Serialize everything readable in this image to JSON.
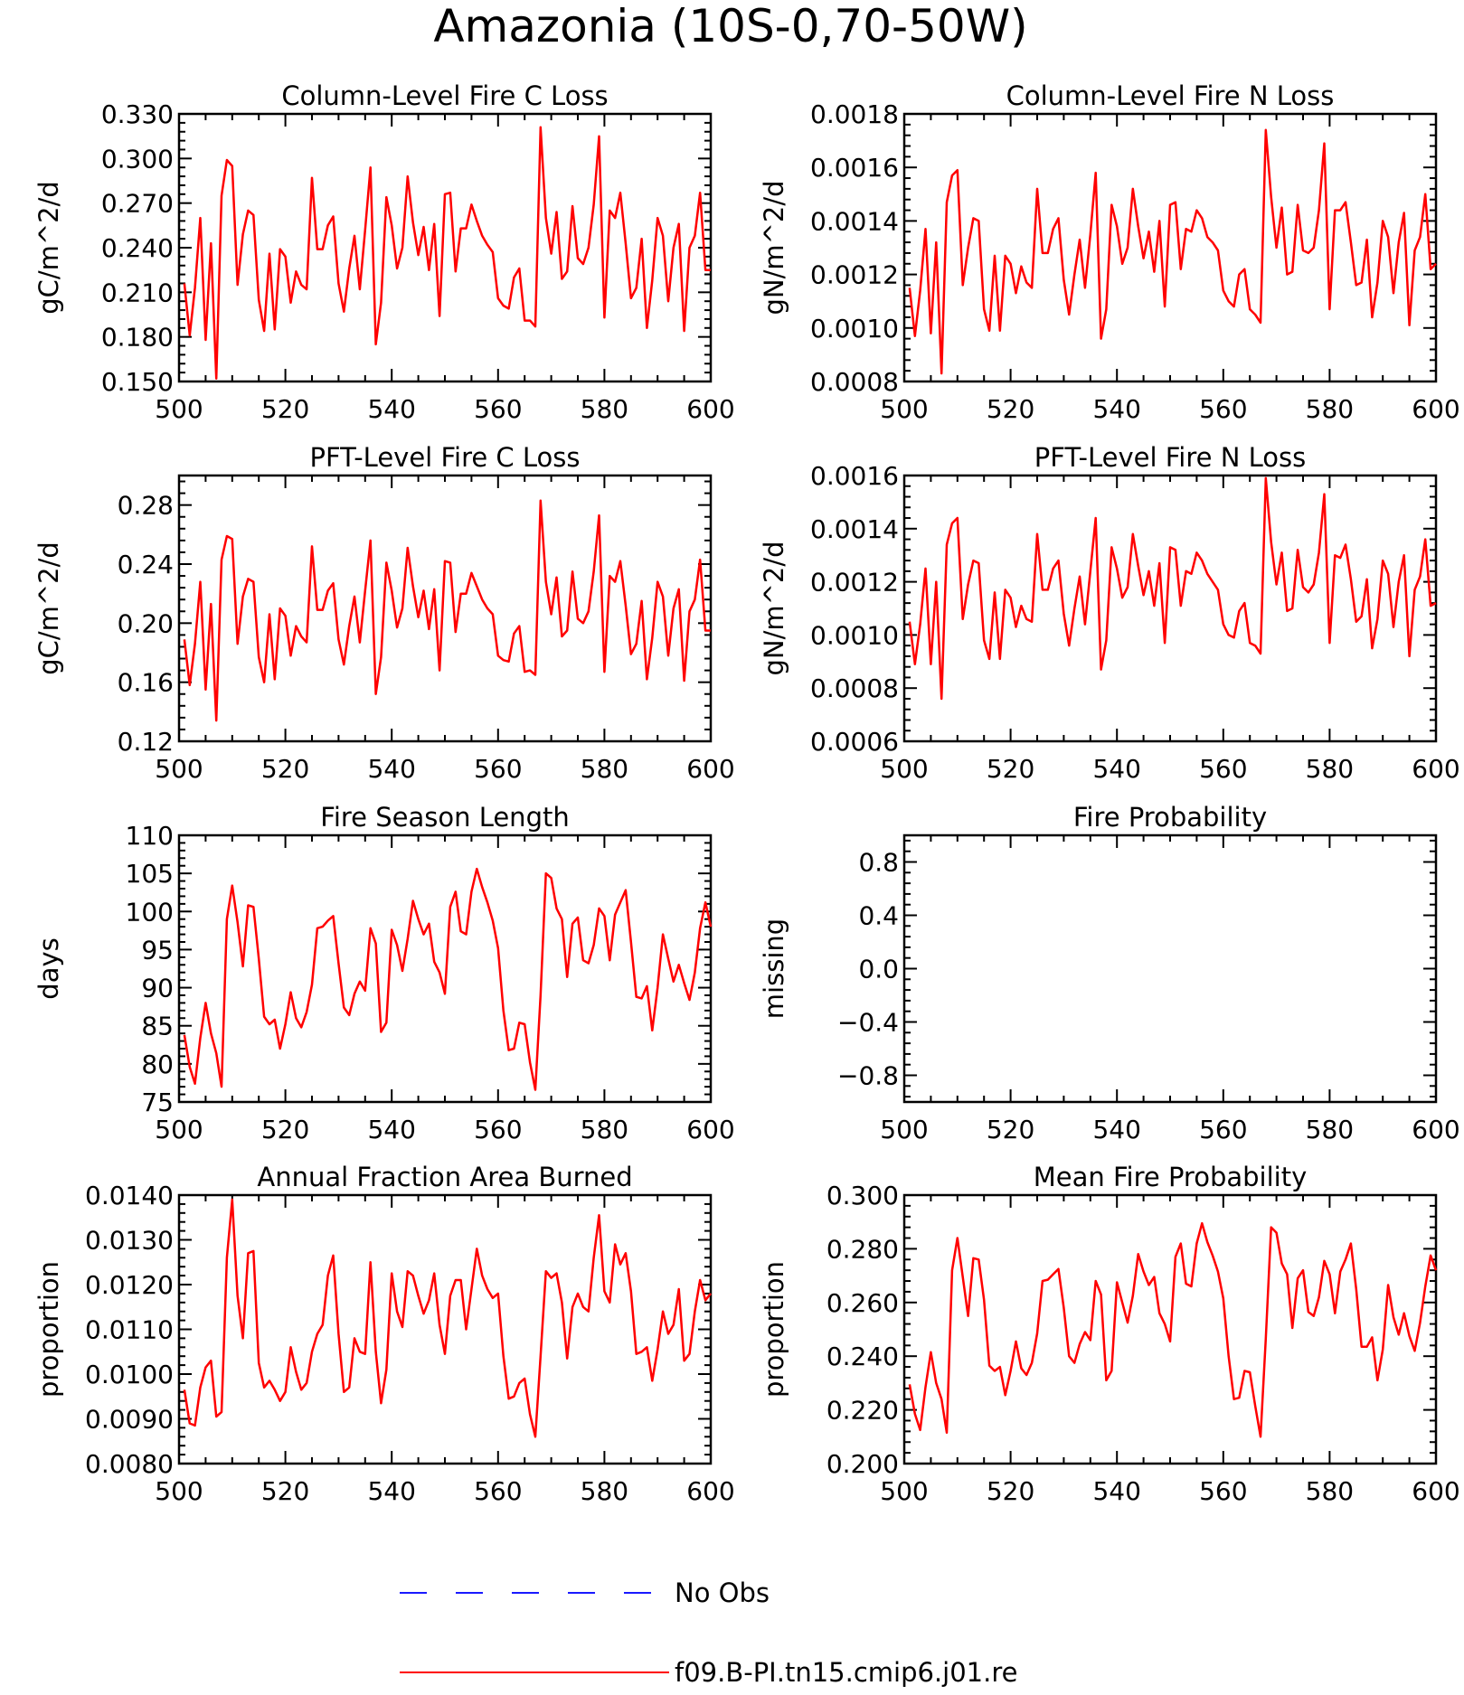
{
  "title": "Amazonia (10S-0,70-50W)",
  "legend": [
    {
      "label": "No Obs",
      "color": "#1a1aff",
      "style": "dashed"
    },
    {
      "label": "f09.B-PI.tn15.cmip6.j01.re",
      "color": "#ff0000",
      "style": "solid"
    }
  ],
  "chart_data": [
    {
      "type": "line",
      "title": "Column-Level Fire C Loss",
      "ylabel": "gC/m^2/d",
      "xlim": [
        500,
        600
      ],
      "xticks": [
        500,
        520,
        540,
        560,
        580,
        600
      ],
      "ylim": [
        0.15,
        0.33
      ],
      "yticks": [
        0.15,
        0.18,
        0.21,
        0.24,
        0.27,
        0.3,
        0.33
      ],
      "ytick_labels": [
        "0.150",
        "0.180",
        "0.210",
        "0.240",
        "0.270",
        "0.300",
        "0.330"
      ],
      "x_start": 501,
      "series": [
        {
          "color": "#ff0000",
          "values": [
            0.216,
            0.181,
            0.213,
            0.26,
            0.178,
            0.243,
            0.152,
            0.275,
            0.299,
            0.295,
            0.215,
            0.249,
            0.265,
            0.262,
            0.205,
            0.184,
            0.236,
            0.185,
            0.239,
            0.234,
            0.203,
            0.224,
            0.215,
            0.212,
            0.287,
            0.239,
            0.239,
            0.255,
            0.261,
            0.216,
            0.197,
            0.226,
            0.248,
            0.212,
            0.252,
            0.294,
            0.175,
            0.203,
            0.274,
            0.255,
            0.226,
            0.24,
            0.288,
            0.257,
            0.235,
            0.254,
            0.225,
            0.256,
            0.194,
            0.276,
            0.277,
            0.224,
            0.253,
            0.253,
            0.269,
            0.258,
            0.248,
            0.242,
            0.237,
            0.206,
            0.201,
            0.199,
            0.22,
            0.226,
            0.191,
            0.191,
            0.187,
            0.321,
            0.26,
            0.236,
            0.264,
            0.219,
            0.224,
            0.268,
            0.233,
            0.229,
            0.24,
            0.269,
            0.315,
            0.193,
            0.265,
            0.26,
            0.277,
            0.243,
            0.206,
            0.213,
            0.246,
            0.186,
            0.218,
            0.26,
            0.248,
            0.204,
            0.24,
            0.256,
            0.184,
            0.24,
            0.248,
            0.277,
            0.225,
            0.225
          ]
        }
      ]
    },
    {
      "type": "line",
      "title": "Column-Level Fire N Loss",
      "ylabel": "gN/m^2/d",
      "xlim": [
        500,
        600
      ],
      "xticks": [
        500,
        520,
        540,
        560,
        580,
        600
      ],
      "ylim": [
        0.0008,
        0.0018
      ],
      "yticks": [
        0.0008,
        0.001,
        0.0012,
        0.0014,
        0.0016,
        0.0018
      ],
      "ytick_labels": [
        "0.0008",
        "0.0010",
        "0.0012",
        "0.0014",
        "0.0016",
        "0.0018"
      ],
      "x_start": 501,
      "series": [
        {
          "color": "#ff0000",
          "values": [
            0.00115,
            0.00097,
            0.00114,
            0.00137,
            0.00098,
            0.00132,
            0.00083,
            0.00147,
            0.00157,
            0.00159,
            0.00116,
            0.0013,
            0.00141,
            0.0014,
            0.00107,
            0.00099,
            0.00127,
            0.00099,
            0.00127,
            0.00124,
            0.00113,
            0.00123,
            0.00117,
            0.00115,
            0.00152,
            0.00128,
            0.00128,
            0.00137,
            0.00141,
            0.00118,
            0.00105,
            0.0012,
            0.00133,
            0.00115,
            0.00135,
            0.00158,
            0.00096,
            0.00107,
            0.00146,
            0.00138,
            0.00124,
            0.0013,
            0.00152,
            0.00138,
            0.00126,
            0.00136,
            0.00121,
            0.0014,
            0.00108,
            0.00146,
            0.00147,
            0.00122,
            0.00137,
            0.00136,
            0.00144,
            0.00141,
            0.00134,
            0.00132,
            0.00129,
            0.00114,
            0.0011,
            0.00108,
            0.0012,
            0.00122,
            0.00107,
            0.00105,
            0.00102,
            0.00174,
            0.00149,
            0.0013,
            0.00145,
            0.0012,
            0.00121,
            0.00146,
            0.00129,
            0.00128,
            0.0013,
            0.00144,
            0.00169,
            0.00107,
            0.00144,
            0.00144,
            0.00147,
            0.00132,
            0.00116,
            0.00117,
            0.00133,
            0.00104,
            0.00117,
            0.0014,
            0.00134,
            0.00113,
            0.00132,
            0.00143,
            0.00101,
            0.00129,
            0.00134,
            0.0015,
            0.00122,
            0.00124
          ]
        }
      ]
    },
    {
      "type": "line",
      "title": "PFT-Level Fire C Loss",
      "ylabel": "gC/m^2/d",
      "xlim": [
        500,
        600
      ],
      "xticks": [
        500,
        520,
        540,
        560,
        580,
        600
      ],
      "ylim": [
        0.12,
        0.3
      ],
      "yticks": [
        0.12,
        0.16,
        0.2,
        0.24,
        0.28
      ],
      "ytick_labels": [
        "0.12",
        "0.16",
        "0.20",
        "0.24",
        "0.28"
      ],
      "x_start": 501,
      "series": [
        {
          "color": "#ff0000",
          "values": [
            0.189,
            0.158,
            0.186,
            0.228,
            0.155,
            0.213,
            0.134,
            0.243,
            0.259,
            0.257,
            0.186,
            0.218,
            0.23,
            0.228,
            0.177,
            0.16,
            0.206,
            0.162,
            0.21,
            0.205,
            0.178,
            0.198,
            0.191,
            0.187,
            0.252,
            0.209,
            0.209,
            0.222,
            0.227,
            0.189,
            0.172,
            0.198,
            0.218,
            0.187,
            0.222,
            0.256,
            0.152,
            0.177,
            0.241,
            0.222,
            0.197,
            0.21,
            0.251,
            0.225,
            0.204,
            0.222,
            0.196,
            0.223,
            0.168,
            0.242,
            0.241,
            0.194,
            0.22,
            0.22,
            0.234,
            0.225,
            0.216,
            0.21,
            0.206,
            0.178,
            0.175,
            0.174,
            0.193,
            0.198,
            0.167,
            0.168,
            0.165,
            0.283,
            0.228,
            0.206,
            0.231,
            0.191,
            0.195,
            0.235,
            0.203,
            0.2,
            0.208,
            0.235,
            0.273,
            0.167,
            0.232,
            0.228,
            0.242,
            0.212,
            0.179,
            0.186,
            0.215,
            0.162,
            0.19,
            0.228,
            0.218,
            0.178,
            0.21,
            0.223,
            0.161,
            0.208,
            0.216,
            0.243,
            0.195,
            0.195
          ]
        }
      ]
    },
    {
      "type": "line",
      "title": "PFT-Level Fire N Loss",
      "ylabel": "gN/m^2/d",
      "xlim": [
        500,
        600
      ],
      "xticks": [
        500,
        520,
        540,
        560,
        580,
        600
      ],
      "ylim": [
        0.0006,
        0.0016
      ],
      "yticks": [
        0.0006,
        0.0008,
        0.001,
        0.0012,
        0.0014,
        0.0016
      ],
      "ytick_labels": [
        "0.0006",
        "0.0008",
        "0.0010",
        "0.0012",
        "0.0014",
        "0.0016"
      ],
      "x_start": 501,
      "series": [
        {
          "color": "#ff0000",
          "values": [
            0.00105,
            0.00089,
            0.00104,
            0.00125,
            0.00089,
            0.0012,
            0.00076,
            0.00134,
            0.00142,
            0.00144,
            0.00106,
            0.00119,
            0.00128,
            0.00127,
            0.00098,
            0.00091,
            0.00116,
            0.00091,
            0.00117,
            0.00114,
            0.00103,
            0.00111,
            0.00106,
            0.00105,
            0.00138,
            0.00117,
            0.00117,
            0.00125,
            0.00128,
            0.00108,
            0.00096,
            0.0011,
            0.00122,
            0.00104,
            0.00124,
            0.00144,
            0.00087,
            0.00098,
            0.00133,
            0.00125,
            0.00114,
            0.00118,
            0.00138,
            0.00126,
            0.00115,
            0.00124,
            0.00111,
            0.00127,
            0.00097,
            0.00133,
            0.00132,
            0.00111,
            0.00124,
            0.00123,
            0.00131,
            0.00128,
            0.00123,
            0.0012,
            0.00117,
            0.00104,
            0.001,
            0.00099,
            0.00109,
            0.00112,
            0.00097,
            0.00096,
            0.00093,
            0.00159,
            0.00135,
            0.00119,
            0.00131,
            0.00109,
            0.0011,
            0.00132,
            0.00118,
            0.00116,
            0.00119,
            0.00131,
            0.00153,
            0.00097,
            0.0013,
            0.00129,
            0.00134,
            0.00121,
            0.00105,
            0.00107,
            0.00121,
            0.00095,
            0.00106,
            0.00128,
            0.00123,
            0.00103,
            0.0012,
            0.0013,
            0.00092,
            0.00117,
            0.00122,
            0.00136,
            0.00111,
            0.00112
          ]
        }
      ]
    },
    {
      "type": "line",
      "title": "Fire Season Length",
      "ylabel": "days",
      "xlim": [
        500,
        600
      ],
      "xticks": [
        500,
        520,
        540,
        560,
        580,
        600
      ],
      "ylim": [
        75,
        110
      ],
      "yticks": [
        75,
        80,
        85,
        90,
        95,
        100,
        105,
        110
      ],
      "ytick_labels": [
        "75",
        "80",
        "85",
        "90",
        "95",
        "100",
        "105",
        "110"
      ],
      "x_start": 501,
      "series": [
        {
          "color": "#ff0000",
          "values": [
            83.8,
            79.6,
            77.4,
            83.4,
            88.0,
            84.0,
            81.4,
            77.0,
            99.0,
            103.4,
            98.6,
            92.8,
            100.8,
            100.6,
            93.8,
            86.2,
            85.2,
            85.8,
            82.0,
            85.2,
            89.4,
            86.0,
            84.8,
            86.8,
            90.4,
            97.8,
            98.0,
            98.8,
            99.4,
            93.2,
            87.4,
            86.4,
            89.2,
            90.8,
            89.6,
            97.8,
            95.8,
            84.2,
            85.4,
            97.6,
            95.6,
            92.2,
            96.4,
            101.4,
            99.0,
            97.0,
            98.4,
            93.4,
            92.0,
            89.2,
            100.6,
            102.6,
            97.4,
            97.0,
            102.6,
            105.6,
            103.2,
            101.2,
            98.8,
            95.2,
            87.0,
            81.8,
            82.0,
            85.4,
            85.2,
            80.2,
            76.6,
            89.0,
            105.0,
            104.4,
            100.4,
            99.0,
            91.4,
            98.4,
            99.2,
            93.6,
            93.2,
            95.6,
            100.4,
            99.4,
            93.6,
            99.6,
            101.2,
            102.8,
            96.0,
            88.8,
            88.6,
            90.2,
            84.4,
            90.0,
            97.0,
            93.8,
            90.8,
            93.0,
            90.6,
            88.4,
            92.0,
            97.8,
            101.2,
            98.0
          ]
        }
      ]
    },
    {
      "type": "line",
      "title": "Fire Probability",
      "ylabel": "missing",
      "xlim": [
        500,
        600
      ],
      "xticks": [
        500,
        520,
        540,
        560,
        580,
        600
      ],
      "ylim": [
        -1.0,
        1.0
      ],
      "yticks": [
        -0.8,
        -0.4,
        0.0,
        0.4,
        0.8
      ],
      "ytick_labels": [
        "−0.8",
        "−0.4",
        "0.0",
        "0.4",
        "0.8"
      ],
      "x_start": 501,
      "series": []
    },
    {
      "type": "line",
      "title": "Annual Fraction Area Burned",
      "ylabel": "proportion",
      "xlim": [
        500,
        600
      ],
      "xticks": [
        500,
        520,
        540,
        560,
        580,
        600
      ],
      "ylim": [
        0.008,
        0.014
      ],
      "yticks": [
        0.008,
        0.009,
        0.01,
        0.011,
        0.012,
        0.013,
        0.014
      ],
      "ytick_labels": [
        "0.0080",
        "0.0090",
        "0.0100",
        "0.0110",
        "0.0120",
        "0.0130",
        "0.0140"
      ],
      "x_start": 501,
      "series": [
        {
          "color": "#ff0000",
          "values": [
            0.00965,
            0.0089,
            0.00885,
            0.0097,
            0.01015,
            0.0103,
            0.00905,
            0.00915,
            0.0126,
            0.0139,
            0.01175,
            0.0108,
            0.0127,
            0.01275,
            0.01025,
            0.0097,
            0.00985,
            0.00965,
            0.0094,
            0.0096,
            0.0106,
            0.01005,
            0.00965,
            0.0098,
            0.0105,
            0.0109,
            0.0111,
            0.0122,
            0.01265,
            0.0109,
            0.0096,
            0.0097,
            0.0108,
            0.0105,
            0.01045,
            0.0125,
            0.0105,
            0.00935,
            0.0101,
            0.01225,
            0.0114,
            0.01105,
            0.0123,
            0.0122,
            0.01175,
            0.01135,
            0.01165,
            0.01225,
            0.0111,
            0.01045,
            0.01175,
            0.0121,
            0.0121,
            0.011,
            0.0119,
            0.0128,
            0.0122,
            0.0119,
            0.0117,
            0.0118,
            0.0104,
            0.00945,
            0.0095,
            0.0098,
            0.0099,
            0.0091,
            0.0086,
            0.0104,
            0.0123,
            0.01215,
            0.01225,
            0.0116,
            0.01035,
            0.0115,
            0.0118,
            0.0115,
            0.0114,
            0.0126,
            0.01355,
            0.01185,
            0.0116,
            0.0129,
            0.01245,
            0.0127,
            0.01185,
            0.01045,
            0.0105,
            0.0106,
            0.00985,
            0.01055,
            0.0114,
            0.0109,
            0.0111,
            0.0119,
            0.0103,
            0.01045,
            0.0114,
            0.0121,
            0.01165,
            0.0118
          ]
        }
      ]
    },
    {
      "type": "line",
      "title": "Mean Fire Probability",
      "ylabel": "proportion",
      "xlim": [
        500,
        600
      ],
      "xticks": [
        500,
        520,
        540,
        560,
        580,
        600
      ],
      "ylim": [
        0.2,
        0.3
      ],
      "yticks": [
        0.2,
        0.22,
        0.24,
        0.26,
        0.28,
        0.3
      ],
      "ytick_labels": [
        "0.200",
        "0.220",
        "0.240",
        "0.260",
        "0.280",
        "0.300"
      ],
      "x_start": 501,
      "series": [
        {
          "color": "#ff0000",
          "values": [
            0.2295,
            0.2185,
            0.2125,
            0.2285,
            0.2415,
            0.23,
            0.224,
            0.2115,
            0.272,
            0.284,
            0.2695,
            0.255,
            0.2765,
            0.276,
            0.261,
            0.2365,
            0.2345,
            0.236,
            0.2255,
            0.2345,
            0.2455,
            0.2355,
            0.233,
            0.2375,
            0.2485,
            0.268,
            0.2685,
            0.2705,
            0.2725,
            0.258,
            0.24,
            0.2375,
            0.2445,
            0.249,
            0.246,
            0.268,
            0.263,
            0.231,
            0.2345,
            0.2675,
            0.26,
            0.2525,
            0.2625,
            0.278,
            0.2715,
            0.2665,
            0.2695,
            0.256,
            0.252,
            0.2455,
            0.277,
            0.282,
            0.267,
            0.266,
            0.282,
            0.2895,
            0.2825,
            0.2775,
            0.2715,
            0.2615,
            0.24,
            0.224,
            0.2245,
            0.2345,
            0.234,
            0.2215,
            0.21,
            0.2465,
            0.288,
            0.286,
            0.2745,
            0.2705,
            0.2505,
            0.269,
            0.272,
            0.2565,
            0.255,
            0.262,
            0.2755,
            0.2705,
            0.256,
            0.2715,
            0.276,
            0.282,
            0.265,
            0.2435,
            0.2435,
            0.247,
            0.231,
            0.2425,
            0.2665,
            0.2545,
            0.248,
            0.256,
            0.2475,
            0.242,
            0.2525,
            0.266,
            0.2775,
            0.272
          ]
        }
      ]
    }
  ]
}
